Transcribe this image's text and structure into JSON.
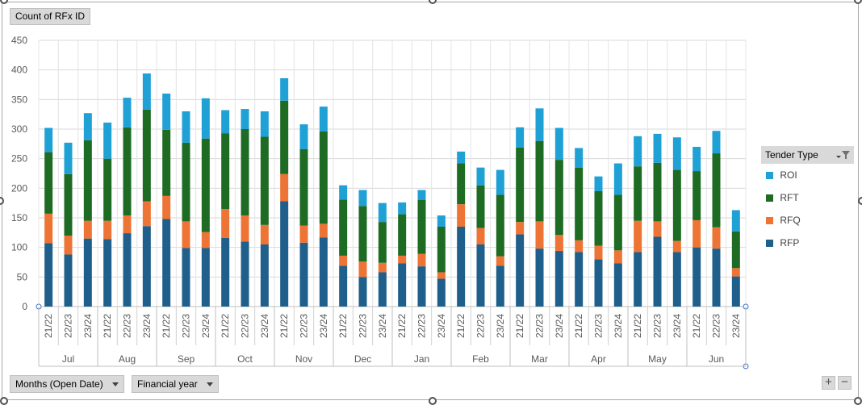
{
  "value_field": "Count of RFx ID",
  "filters": {
    "months_label": "Months (Open Date)",
    "fy_label": "Financial year"
  },
  "legend": {
    "title": "Tender Type",
    "filter_icon": "funnel-dropdown-icon",
    "items": [
      {
        "name": "ROI",
        "color": "#1fa1d6"
      },
      {
        "name": "RFT",
        "color": "#1e6b24"
      },
      {
        "name": "RFQ",
        "color": "#ed7434"
      },
      {
        "name": "RFP",
        "color": "#1f5f8b"
      }
    ]
  },
  "zoom": {
    "plus": "+",
    "minus": "−"
  },
  "chart_data": {
    "type": "bar",
    "stacked": true,
    "ylim": [
      0,
      450
    ],
    "yticks": [
      0,
      50,
      100,
      150,
      200,
      250,
      300,
      350,
      400,
      450
    ],
    "grid": true,
    "legend_position": "right",
    "groups": [
      {
        "label": "Jul",
        "years": [
          "21/22",
          "22/23",
          "23/24"
        ]
      },
      {
        "label": "Aug",
        "years": [
          "21/22",
          "22/23",
          "23/24"
        ]
      },
      {
        "label": "Sep",
        "years": [
          "21/22",
          "22/23",
          "23/24"
        ]
      },
      {
        "label": "Oct",
        "years": [
          "21/22",
          "22/23",
          "23/24"
        ]
      },
      {
        "label": "Nov",
        "years": [
          "21/22",
          "22/23",
          "23/24"
        ]
      },
      {
        "label": "Dec",
        "years": [
          "21/22",
          "22/23",
          "23/24"
        ]
      },
      {
        "label": "Jan",
        "years": [
          "21/22",
          "22/23",
          "23/24"
        ]
      },
      {
        "label": "Feb",
        "years": [
          "21/22",
          "22/23",
          "23/24"
        ]
      },
      {
        "label": "Mar",
        "years": [
          "21/22",
          "22/23",
          "23/24"
        ]
      },
      {
        "label": "Apr",
        "years": [
          "21/22",
          "22/23",
          "23/24"
        ]
      },
      {
        "label": "May",
        "years": [
          "21/22",
          "22/23",
          "23/24"
        ]
      },
      {
        "label": "Jun",
        "years": [
          "21/22",
          "22/23",
          "23/24"
        ]
      }
    ],
    "series": [
      {
        "name": "RFP",
        "color": "#1f5f8b",
        "values": [
          107,
          88,
          115,
          114,
          124,
          136,
          148,
          99,
          99,
          116,
          110,
          105,
          178,
          108,
          117,
          69,
          50,
          58,
          73,
          68,
          47,
          135,
          105,
          69,
          122,
          98,
          94,
          92,
          80,
          73,
          92,
          118,
          92,
          100,
          98,
          51
        ]
      },
      {
        "name": "RFQ",
        "color": "#ed7434",
        "values": [
          50,
          32,
          30,
          31,
          30,
          42,
          39,
          45,
          27,
          49,
          44,
          33,
          46,
          29,
          23,
          17,
          26,
          16,
          13,
          21,
          11,
          38,
          28,
          16,
          21,
          46,
          27,
          20,
          23,
          22,
          53,
          26,
          19,
          46,
          36,
          14
        ]
      },
      {
        "name": "RFT",
        "color": "#1e6b24",
        "values": [
          104,
          104,
          136,
          105,
          149,
          155,
          112,
          133,
          158,
          128,
          146,
          149,
          124,
          129,
          156,
          95,
          94,
          69,
          70,
          91,
          77,
          69,
          72,
          104,
          126,
          136,
          127,
          123,
          92,
          94,
          92,
          99,
          120,
          83,
          125,
          62
        ]
      },
      {
        "name": "ROI",
        "color": "#1fa1d6",
        "values": [
          41,
          53,
          46,
          61,
          50,
          61,
          61,
          53,
          68,
          39,
          34,
          43,
          38,
          42,
          42,
          24,
          27,
          32,
          20,
          17,
          19,
          20,
          30,
          42,
          34,
          55,
          54,
          33,
          25,
          53,
          51,
          49,
          55,
          41,
          38,
          36
        ]
      }
    ]
  }
}
